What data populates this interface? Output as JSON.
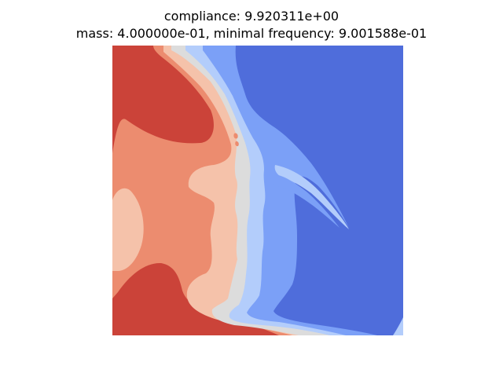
{
  "chart_data": {
    "type": "heatmap",
    "title_lines": [
      "compliance: 9.920311e+00",
      "mass: 4.000000e-01, minimal frequency: 9.001588e-01"
    ],
    "colormap": "coolwarm",
    "axes_visible": false,
    "colorbar": false,
    "contour_levels": [
      {
        "name": "level-1",
        "color": "#4f6ddb"
      },
      {
        "name": "level-2",
        "color": "#7ba0f7"
      },
      {
        "name": "level-3",
        "color": "#b3cdfb"
      },
      {
        "name": "level-4",
        "color": "#dcdcdc"
      },
      {
        "name": "level-5",
        "color": "#f5c2aa"
      },
      {
        "name": "level-6",
        "color": "#ec8c6f"
      },
      {
        "name": "level-7",
        "color": "#cb4339"
      }
    ]
  }
}
